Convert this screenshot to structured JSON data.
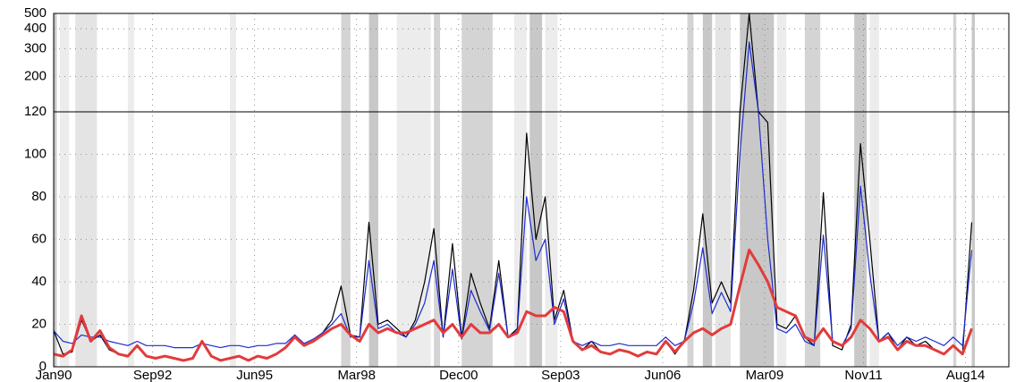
{
  "chart_data": {
    "type": "line",
    "x": [
      "Jan90",
      "Apr90",
      "Jul90",
      "Oct90",
      "Jan91",
      "Apr91",
      "Jul91",
      "Oct91",
      "Jan92",
      "Apr92",
      "Jul92",
      "Oct92",
      "Jan93",
      "Apr93",
      "Jul93",
      "Oct93",
      "Jan94",
      "Apr94",
      "Jul94",
      "Oct94",
      "Jan95",
      "Apr95",
      "Jul95",
      "Oct95",
      "Jan96",
      "Apr96",
      "Jul96",
      "Oct96",
      "Jan97",
      "Apr97",
      "Jul97",
      "Oct97",
      "Jan98",
      "Apr98",
      "Jul98",
      "Oct98",
      "Jan99",
      "Apr99",
      "Jul99",
      "Oct99",
      "Jan00",
      "Apr00",
      "Jul00",
      "Oct00",
      "Jan01",
      "Apr01",
      "Jul01",
      "Oct01",
      "Jan02",
      "Apr02",
      "Jul02",
      "Oct02",
      "Jan03",
      "Apr03",
      "Jul03",
      "Oct03",
      "Jan04",
      "Apr04",
      "Jul04",
      "Oct04",
      "Jan05",
      "Apr05",
      "Jul05",
      "Oct05",
      "Jan06",
      "Apr06",
      "Jul06",
      "Oct06",
      "Jan07",
      "Apr07",
      "Jul07",
      "Oct07",
      "Jan08",
      "Apr08",
      "Jul08",
      "Oct08",
      "Jan09",
      "Apr09",
      "Jul09",
      "Oct09",
      "Jan10",
      "Apr10",
      "Jul10",
      "Oct10",
      "Jan11",
      "Apr11",
      "Jul11",
      "Oct11",
      "Jan12",
      "Apr12",
      "Jul12",
      "Oct12",
      "Jan13",
      "Apr13",
      "Jul13",
      "Oct13",
      "Jan14",
      "Apr14",
      "Jul14",
      "Oct14"
    ],
    "series": [
      {
        "color": "#000000",
        "width": 1.2,
        "values": [
          17,
          6,
          7,
          22,
          12,
          15,
          8,
          6,
          5,
          10,
          5,
          4,
          5,
          4,
          3,
          4,
          12,
          5,
          3,
          4,
          5,
          3,
          5,
          4,
          6,
          9,
          15,
          10,
          12,
          16,
          22,
          38,
          15,
          14,
          68,
          20,
          22,
          18,
          14,
          22,
          40,
          65,
          14,
          58,
          14,
          44,
          30,
          18,
          50,
          14,
          18,
          110,
          60,
          80,
          22,
          36,
          12,
          8,
          12,
          7,
          6,
          8,
          7,
          5,
          7,
          6,
          12,
          6,
          12,
          36,
          72,
          30,
          40,
          30,
          120,
          500,
          120,
          115,
          20,
          18,
          24,
          14,
          10,
          82,
          10,
          8,
          20,
          105,
          60,
          12,
          16,
          8,
          14,
          10,
          12,
          8,
          6,
          10,
          6,
          68
        ]
      },
      {
        "color": "#1c2bd0",
        "width": 1.2,
        "values": [
          17,
          12,
          11,
          15,
          14,
          14,
          12,
          11,
          10,
          12,
          10,
          10,
          10,
          9,
          9,
          9,
          11,
          10,
          9,
          10,
          10,
          9,
          10,
          10,
          11,
          11,
          15,
          11,
          13,
          16,
          20,
          25,
          14,
          14,
          50,
          18,
          20,
          16,
          14,
          20,
          30,
          50,
          14,
          46,
          13,
          36,
          26,
          17,
          44,
          14,
          17,
          80,
          50,
          60,
          20,
          32,
          12,
          10,
          12,
          10,
          10,
          11,
          10,
          10,
          10,
          10,
          14,
          10,
          12,
          30,
          56,
          25,
          35,
          26,
          100,
          330,
          120,
          60,
          18,
          16,
          20,
          12,
          10,
          62,
          12,
          10,
          18,
          85,
          44,
          12,
          16,
          10,
          14,
          12,
          14,
          12,
          10,
          14,
          10,
          55
        ]
      },
      {
        "color": "#e23b3b",
        "width": 3,
        "values": [
          6,
          5,
          8,
          24,
          12,
          17,
          9,
          6,
          5,
          10,
          5,
          4,
          5,
          4,
          3,
          4,
          12,
          5,
          3,
          4,
          5,
          3,
          5,
          4,
          6,
          9,
          14,
          10,
          12,
          15,
          18,
          20,
          15,
          12,
          20,
          16,
          18,
          16,
          16,
          18,
          20,
          22,
          16,
          20,
          14,
          20,
          16,
          16,
          20,
          14,
          16,
          26,
          24,
          24,
          28,
          26,
          12,
          8,
          10,
          7,
          6,
          8,
          7,
          5,
          7,
          6,
          12,
          7,
          12,
          16,
          18,
          15,
          18,
          20,
          38,
          55,
          48,
          40,
          28,
          26,
          24,
          14,
          12,
          18,
          12,
          10,
          14,
          22,
          18,
          12,
          14,
          8,
          12,
          10,
          10,
          8,
          6,
          10,
          6,
          18
        ]
      }
    ],
    "xlim": [
      "Jan90",
      "Oct15"
    ],
    "xticks": [
      "Jan90",
      "Sep92",
      "Jun95",
      "Mar98",
      "Dec00",
      "Sep03",
      "Jun06",
      "Mar09",
      "Nov11",
      "Aug14"
    ],
    "ylim": [
      0,
      120
    ],
    "yticks": [
      0,
      20,
      40,
      60,
      80,
      100,
      120
    ],
    "y2lim": [
      120,
      500
    ],
    "y2ticks": [
      200,
      300,
      400,
      500
    ],
    "y2_log": true,
    "grid": true,
    "bands": [
      {
        "start": "Jan90",
        "end": "Feb90",
        "color": "#c8c8c8"
      },
      {
        "start": "Mar90",
        "end": "Jun90",
        "color": "#ececec"
      },
      {
        "start": "Aug90",
        "end": "Mar91",
        "color": "#e4e4e4"
      },
      {
        "start": "Jan92",
        "end": "Mar92",
        "color": "#ececec"
      },
      {
        "start": "Oct94",
        "end": "Dec94",
        "color": "#ececec"
      },
      {
        "start": "Oct97",
        "end": "Jan98",
        "color": "#d4d4d4"
      },
      {
        "start": "Jul98",
        "end": "Oct98",
        "color": "#c8c8c8"
      },
      {
        "start": "Apr99",
        "end": "Mar00",
        "color": "#ececec"
      },
      {
        "start": "Apr00",
        "end": "Jun00",
        "color": "#d4d4d4"
      },
      {
        "start": "Jan01",
        "end": "Nov01",
        "color": "#d4d4d4"
      },
      {
        "start": "Jun02",
        "end": "Oct02",
        "color": "#ececec"
      },
      {
        "start": "Nov02",
        "end": "Mar03",
        "color": "#c8c8c8"
      },
      {
        "start": "Apr03",
        "end": "Aug03",
        "color": "#ececec"
      },
      {
        "start": "Feb07",
        "end": "Apr07",
        "color": "#d4d4d4"
      },
      {
        "start": "Jul07",
        "end": "Oct07",
        "color": "#c8c8c8"
      },
      {
        "start": "Nov07",
        "end": "Apr08",
        "color": "#e4e4e4"
      },
      {
        "start": "Jul08",
        "end": "Jun09",
        "color": "#c8c8c8"
      },
      {
        "start": "Jul09",
        "end": "Oct09",
        "color": "#ececec"
      },
      {
        "start": "Apr10",
        "end": "Sep10",
        "color": "#d4d4d4"
      },
      {
        "start": "Aug11",
        "end": "Dec11",
        "color": "#c8c8c8"
      },
      {
        "start": "Jan12",
        "end": "Apr12",
        "color": "#ececec"
      },
      {
        "start": "Apr14",
        "end": "May14",
        "color": "#d4d4d4"
      },
      {
        "start": "Oct14",
        "end": "Nov14",
        "color": "#c8c8c8"
      }
    ]
  }
}
